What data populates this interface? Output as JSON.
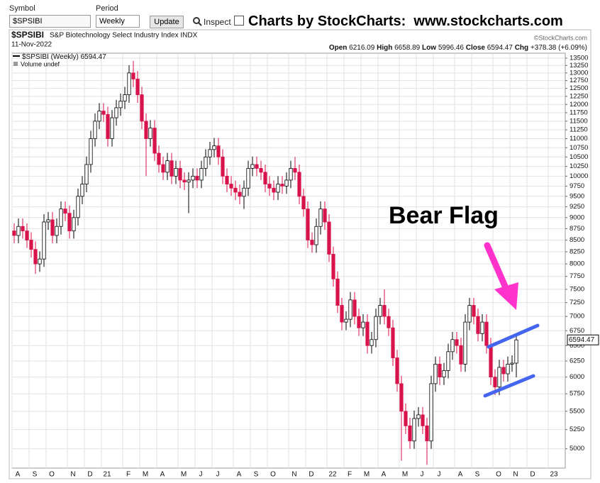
{
  "toolbar": {
    "symbol_label": "Symbol",
    "symbol": "$SPSIBI",
    "period_label": "Period",
    "period": "Weekly",
    "update": "Update",
    "inspect": "Inspect",
    "banner": "Charts by StockCharts:  www.stockcharts.com"
  },
  "chart_data": {
    "type": "candlestick",
    "title": "$SPSIBI",
    "subtitle": "S&P Biotechnology Select Industry Index INDX",
    "date": "11-Nov-2022",
    "credit": "©StockCharts.com",
    "series_name": "$SPSIBI (Weekly)",
    "volume_label": "Volume undef",
    "ohlc_labels": [
      "Open",
      "High",
      "Low",
      "Close",
      "Chg"
    ],
    "change": "+378.38 (+6.09%)",
    "annotation": "Bear Flag",
    "up_color": "#ffffff",
    "down_color": "#d8124a",
    "log_y": true,
    "grid": true,
    "categories": [
      "A",
      null,
      null,
      null,
      "S",
      null,
      null,
      null,
      "O",
      null,
      null,
      null,
      null,
      "N",
      null,
      null,
      null,
      "D",
      null,
      null,
      null,
      "21",
      null,
      null,
      null,
      null,
      "F",
      null,
      null,
      null,
      "M",
      null,
      null,
      null,
      "A",
      null,
      null,
      null,
      null,
      "M",
      null,
      null,
      null,
      "J",
      null,
      null,
      null,
      "J",
      null,
      null,
      null,
      null,
      "A",
      null,
      null,
      null,
      "S",
      null,
      null,
      null,
      "O",
      null,
      null,
      null,
      null,
      "N",
      null,
      null,
      null,
      "D",
      null,
      null,
      null,
      null,
      "22",
      null,
      null,
      null,
      "F",
      null,
      null,
      null,
      "M",
      null,
      null,
      null,
      "A",
      null,
      null,
      null,
      null,
      "M",
      null,
      null,
      null,
      "J",
      null,
      null,
      null,
      "J",
      null,
      null,
      null,
      null,
      "A",
      null,
      null,
      null,
      "S",
      null,
      null,
      null,
      null,
      "O",
      null,
      null,
      null,
      "N",
      null,
      null,
      null,
      "D",
      null,
      null,
      null,
      null,
      "23",
      null,
      null,
      null
    ],
    "open": [
      8700,
      8600,
      8800,
      8700,
      8500,
      8300,
      8000,
      8100,
      8900,
      8950,
      8600,
      8800,
      9200,
      9100,
      8700,
      9000,
      9500,
      9800,
      10300,
      11000,
      11500,
      11800,
      11700,
      11000,
      11600,
      11900,
      12100,
      12300,
      13000,
      12800,
      12300,
      11500,
      11000,
      11300,
      10600,
      10300,
      10100,
      10400,
      10000,
      10200,
      9900,
      9850,
      9900,
      10000,
      9900,
      10200,
      10500,
      10700,
      10800,
      10500,
      10000,
      9800,
      9700,
      9600,
      9500,
      9700,
      10200,
      10300,
      10200,
      10100,
      9800,
      9700,
      9600,
      9800,
      9750,
      9900,
      10200,
      10100,
      9500,
      9200,
      8500,
      8400,
      8800,
      9200,
      8900,
      8200,
      7700,
      7200,
      6900,
      6950,
      7300,
      7000,
      6800,
      6900,
      6500,
      6600,
      7000,
      7200,
      7000,
      6800,
      6300,
      5900,
      5500,
      5300,
      5100,
      5400,
      5450,
      5300,
      5100,
      5900,
      6200,
      6000,
      6100,
      6400,
      6600,
      6500,
      6200,
      6900,
      7200,
      7000,
      6700,
      6900,
      6500,
      6000,
      5850,
      6150,
      6050,
      6200,
      6216.09,
      null,
      null,
      null,
      null,
      null,
      null,
      null,
      null,
      null,
      null,
      null
    ],
    "high": [
      8870,
      8980,
      8980,
      8870,
      8670,
      8470,
      8260,
      9080,
      9130,
      9130,
      8980,
      9380,
      9380,
      9280,
      9180,
      9690,
      10000,
      10510,
      11220,
      11730,
      12040,
      12040,
      11930,
      11830,
      12140,
      12340,
      12550,
      13260,
      13400,
      13060,
      12550,
      11730,
      11530,
      11530,
      10810,
      10510,
      10610,
      10610,
      10400,
      10400,
      10100,
      10100,
      10200,
      10200,
      10400,
      10710,
      10910,
      11020,
      11020,
      10710,
      10200,
      10000,
      9890,
      9790,
      9890,
      10400,
      10510,
      10510,
      10400,
      10300,
      10000,
      9890,
      10000,
      10000,
      10100,
      10400,
      10500,
      10300,
      9690,
      9380,
      8670,
      8980,
      9380,
      9380,
      9080,
      8360,
      7850,
      7340,
      7090,
      7450,
      7450,
      7140,
      7040,
      7040,
      6730,
      7140,
      7340,
      7500,
      7140,
      6940,
      6430,
      6020,
      5610,
      5410,
      5510,
      5560,
      5560,
      5410,
      6020,
      6320,
      6320,
      6220,
      6530,
      6730,
      6730,
      6630,
      7040,
      7340,
      7340,
      7140,
      7040,
      7040,
      6630,
      6120,
      6270,
      6270,
      6320,
      6340,
      6658.89,
      null,
      null,
      null,
      null,
      null,
      null,
      null,
      null,
      null,
      null,
      null
    ],
    "low": [
      8430,
      8430,
      8530,
      8330,
      8130,
      7800,
      7840,
      7940,
      8720,
      8430,
      8430,
      8620,
      8920,
      8530,
      8530,
      8820,
      9310,
      9600,
      10090,
      10780,
      11270,
      11470,
      10780,
      10780,
      11370,
      11660,
      11860,
      12050,
      12540,
      12050,
      11270,
      10000,
      10780,
      10390,
      10090,
      9900,
      9900,
      9800,
      9800,
      9700,
      9650,
      9100,
      9700,
      9700,
      9700,
      10000,
      10290,
      10490,
      10290,
      9800,
      9600,
      9510,
      9410,
      9310,
      9200,
      9510,
      10000,
      10000,
      9900,
      9600,
      9510,
      9410,
      9410,
      9560,
      9560,
      9700,
      9900,
      9310,
      9020,
      8330,
      8230,
      8230,
      8620,
      8720,
      8040,
      7550,
      7060,
      6760,
      6760,
      6810,
      6860,
      6660,
      6660,
      6370,
      6370,
      6470,
      6860,
      6860,
      6660,
      6170,
      5780,
      4850,
      5190,
      5000,
      5000,
      5290,
      5190,
      4800,
      5000,
      5780,
      5880,
      5880,
      5980,
      6270,
      6370,
      6080,
      6080,
      6760,
      6860,
      6570,
      6570,
      6370,
      5880,
      5730,
      5730,
      5930,
      5930,
      6080,
      5996.46,
      null,
      null,
      null,
      null,
      null,
      null,
      null,
      null,
      null,
      null,
      null
    ],
    "close": [
      8600,
      8800,
      8700,
      8500,
      8300,
      8000,
      8100,
      8900,
      8950,
      8600,
      8800,
      9200,
      9100,
      8700,
      9000,
      9500,
      9800,
      10300,
      11000,
      11500,
      11800,
      11700,
      11000,
      11600,
      11900,
      12100,
      12300,
      13000,
      12800,
      12300,
      11500,
      11000,
      11300,
      10600,
      10300,
      10100,
      10400,
      10000,
      10200,
      9900,
      9850,
      9900,
      10000,
      9900,
      10200,
      10500,
      10700,
      10800,
      10500,
      10000,
      9800,
      9700,
      9600,
      9500,
      9700,
      10200,
      10300,
      10200,
      10100,
      9800,
      9700,
      9600,
      9800,
      9750,
      9900,
      10200,
      10100,
      9500,
      9200,
      8500,
      8400,
      8800,
      9200,
      8900,
      8200,
      7700,
      7200,
      6900,
      6950,
      7300,
      7000,
      6800,
      6900,
      6500,
      6600,
      7000,
      7200,
      7000,
      6800,
      6300,
      5900,
      5500,
      5300,
      5100,
      5400,
      5450,
      5300,
      5100,
      5900,
      6200,
      6000,
      6100,
      6400,
      6600,
      6500,
      6200,
      6900,
      7200,
      7000,
      6700,
      6900,
      6500,
      6000,
      5850,
      6150,
      6050,
      6200,
      6216.09,
      6594.47,
      null,
      null,
      null,
      null,
      null,
      null,
      null,
      null,
      null,
      null,
      null
    ],
    "ylim": [
      4760,
      13670
    ],
    "yticks": [
      5000,
      5250,
      5500,
      5750,
      6000,
      6250,
      6500,
      6750,
      7000,
      7250,
      7500,
      7750,
      8000,
      8250,
      8500,
      8750,
      9000,
      9250,
      9500,
      9750,
      10000,
      10250,
      10500,
      10750,
      11000,
      11250,
      11500,
      11750,
      12000,
      12250,
      12500,
      12750,
      13000,
      13250,
      13500
    ]
  }
}
